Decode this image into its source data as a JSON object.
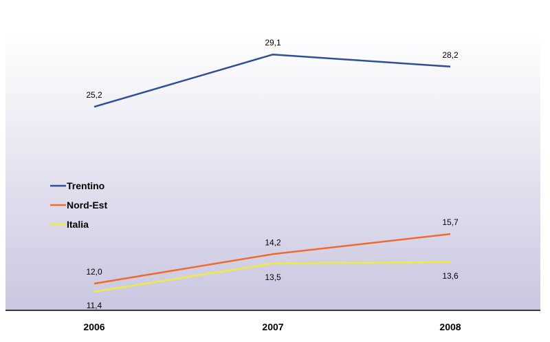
{
  "chart_data": {
    "type": "line",
    "categories": [
      "2006",
      "2007",
      "2008"
    ],
    "series": [
      {
        "name": "Trentino",
        "values": [
          25.2,
          29.1,
          28.2
        ],
        "labels": [
          "25,2",
          "29,1",
          "28,2"
        ],
        "color": "#2e4e98",
        "label_position": "above"
      },
      {
        "name": "Nord-Est",
        "values": [
          12.0,
          14.2,
          15.7
        ],
        "labels": [
          "12,0",
          "14,2",
          "15,7"
        ],
        "color": "#ef6a2f",
        "label_position": "above"
      },
      {
        "name": "Italia",
        "values": [
          11.4,
          13.5,
          13.6
        ],
        "labels": [
          "11,4",
          "13,5",
          "13,6"
        ],
        "color": "#f0ec3c",
        "label_position": "below"
      }
    ],
    "ylim": [
      10,
      30.5
    ],
    "grid": false,
    "legend_position": "middle-left",
    "background": {
      "top": "#ffffff",
      "bottom": "#c9c6e0"
    }
  }
}
